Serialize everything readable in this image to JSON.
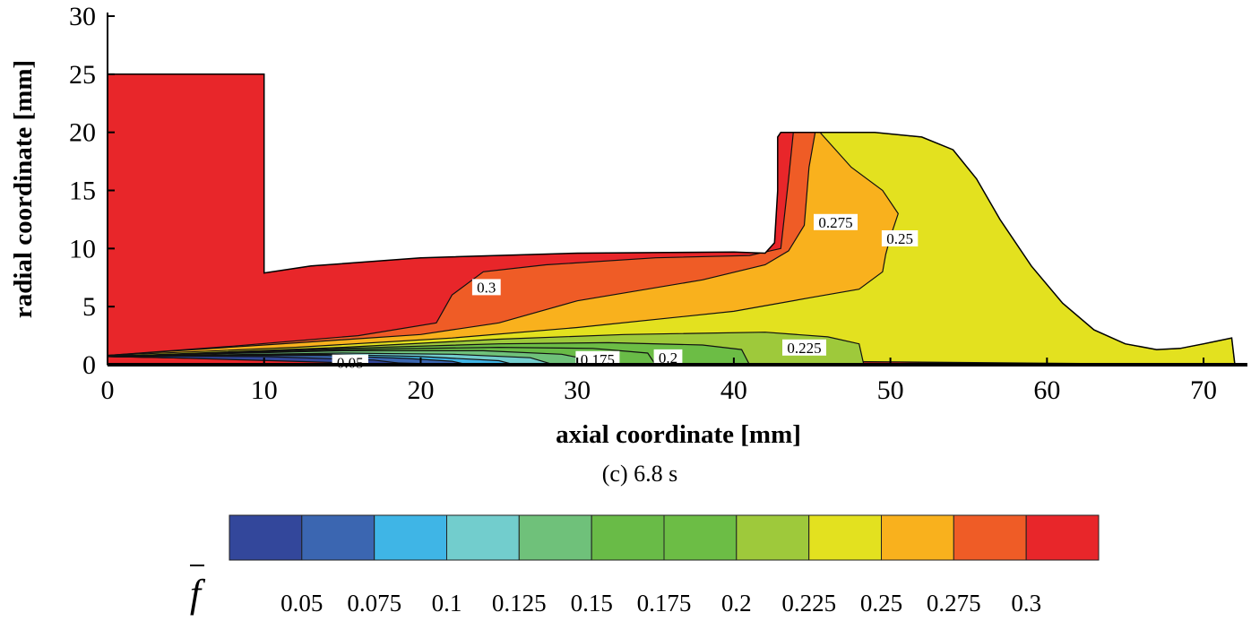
{
  "chart_data": {
    "type": "contour",
    "xlabel": "axial coordinate [mm]",
    "ylabel": "radial coordinate [mm]",
    "caption": "(c) 6.8 s",
    "xlim": [
      0,
      72
    ],
    "ylim": [
      0,
      30
    ],
    "xticks": [
      0,
      10,
      20,
      30,
      40,
      50,
      60,
      70
    ],
    "yticks": [
      0,
      5,
      10,
      15,
      20,
      25,
      30
    ],
    "domain_outline": [
      [
        0,
        0
      ],
      [
        0,
        25
      ],
      [
        10,
        25
      ],
      [
        10,
        7.9
      ],
      [
        13,
        8.5
      ],
      [
        20,
        9.2
      ],
      [
        30,
        9.6
      ],
      [
        40,
        9.7
      ],
      [
        42,
        9.6
      ],
      [
        42.6,
        10.5
      ],
      [
        42.8,
        15
      ],
      [
        42.8,
        19.6
      ],
      [
        43,
        20
      ],
      [
        45,
        20
      ],
      [
        49,
        20
      ],
      [
        52,
        19.6
      ],
      [
        54,
        18.5
      ],
      [
        55.5,
        16
      ],
      [
        57,
        12.5
      ],
      [
        59,
        8.5
      ],
      [
        61,
        5.3
      ],
      [
        63,
        3
      ],
      [
        65,
        1.8
      ],
      [
        67,
        1.3
      ],
      [
        68.5,
        1.4
      ],
      [
        70,
        1.8
      ],
      [
        71.8,
        2.3
      ],
      [
        72,
        0
      ]
    ],
    "regions": [
      {
        "level": 0.3,
        "color": "#e8262a",
        "polygon": "outline"
      },
      {
        "level": 0.275,
        "color": "#ef5c26",
        "polygon": [
          [
            0,
            0.8
          ],
          [
            8,
            1.6
          ],
          [
            16,
            2.5
          ],
          [
            21,
            3.6
          ],
          [
            22,
            6
          ],
          [
            24,
            8
          ],
          [
            28,
            8.6
          ],
          [
            35,
            9.2
          ],
          [
            41,
            9.4
          ],
          [
            43,
            10
          ],
          [
            43.5,
            16
          ],
          [
            43.8,
            20
          ],
          [
            45,
            20
          ],
          [
            49,
            20
          ],
          [
            60,
            20
          ],
          [
            72,
            20
          ],
          [
            72,
            0
          ]
        ]
      },
      {
        "level": 0.25,
        "color": "#f9b11d",
        "polygon": [
          [
            0,
            0.8
          ],
          [
            10,
            1.7
          ],
          [
            20,
            2.6
          ],
          [
            25,
            3.6
          ],
          [
            30,
            5.5
          ],
          [
            38,
            7.3
          ],
          [
            42,
            8.6
          ],
          [
            43.5,
            9.8
          ],
          [
            44.5,
            12
          ],
          [
            44.8,
            17
          ],
          [
            45.2,
            20
          ],
          [
            49,
            20
          ],
          [
            60,
            20
          ],
          [
            72,
            20
          ],
          [
            72,
            0
          ]
        ]
      },
      {
        "level": 0.225,
        "color": "#e3e11f",
        "polygon": [
          [
            0,
            0.8
          ],
          [
            12,
            1.5
          ],
          [
            22,
            2.3
          ],
          [
            30,
            3.2
          ],
          [
            40,
            4.6
          ],
          [
            45,
            5.8
          ],
          [
            48,
            6.5
          ],
          [
            49.5,
            8
          ],
          [
            49.7,
            9.5
          ],
          [
            50,
            11
          ],
          [
            50.5,
            13
          ],
          [
            49.5,
            15
          ],
          [
            47.5,
            17
          ],
          [
            45.5,
            20
          ],
          [
            49,
            20
          ],
          [
            52,
            19.6
          ],
          [
            54,
            18.5
          ],
          [
            55.5,
            16
          ],
          [
            57,
            12.5
          ],
          [
            59,
            8.5
          ],
          [
            61,
            5.3
          ],
          [
            63,
            3
          ],
          [
            65,
            1.8
          ],
          [
            67,
            1.3
          ],
          [
            68.5,
            1.4
          ],
          [
            70,
            1.8
          ],
          [
            71.8,
            2.3
          ],
          [
            72,
            0
          ]
        ]
      },
      {
        "level": 0.2,
        "color": "#9ec93b",
        "polygon": [
          [
            0,
            0.7
          ],
          [
            15,
            1.5
          ],
          [
            25,
            2.2
          ],
          [
            33,
            2.6
          ],
          [
            42,
            2.8
          ],
          [
            46,
            2.4
          ],
          [
            48,
            1.8
          ],
          [
            48.3,
            0
          ]
        ]
      },
      {
        "level": 0.175,
        "color": "#6cbd45",
        "polygon": [
          [
            0,
            0.7
          ],
          [
            15,
            1.4
          ],
          [
            25,
            1.8
          ],
          [
            32,
            1.9
          ],
          [
            38,
            1.7
          ],
          [
            40.5,
            1.3
          ],
          [
            41,
            0
          ]
        ]
      },
      {
        "level": 0.15,
        "color": "#69bb47",
        "polygon": [
          [
            0,
            0.7
          ],
          [
            15,
            1.3
          ],
          [
            25,
            1.5
          ],
          [
            31,
            1.4
          ],
          [
            34.5,
            1.0
          ],
          [
            35,
            0
          ]
        ]
      },
      {
        "level": 0.125,
        "color": "#6fc17a",
        "polygon": [
          [
            0,
            0.7
          ],
          [
            15,
            1.2
          ],
          [
            24,
            1.2
          ],
          [
            29,
            0.9
          ],
          [
            30.5,
            0.5
          ],
          [
            31,
            0
          ]
        ]
      },
      {
        "level": 0.1,
        "color": "#72cdcd",
        "polygon": [
          [
            0,
            0.7
          ],
          [
            15,
            1.0
          ],
          [
            22,
            0.9
          ],
          [
            27,
            0.6
          ],
          [
            28.5,
            0
          ]
        ]
      },
      {
        "level": 0.075,
        "color": "#3fb5e6",
        "polygon": [
          [
            0,
            0.7
          ],
          [
            14,
            0.9
          ],
          [
            20,
            0.7
          ],
          [
            25,
            0.35
          ],
          [
            26,
            0
          ]
        ]
      },
      {
        "level": 0.05,
        "color": "#3b66b1",
        "polygon": [
          [
            0,
            0.8
          ],
          [
            14,
            0.8
          ],
          [
            19,
            0.55
          ],
          [
            22,
            0.3
          ],
          [
            23,
            0
          ]
        ]
      },
      {
        "level": 0.025,
        "color": "#33479b",
        "polygon": [
          [
            0,
            0.75
          ],
          [
            10,
            0.7
          ],
          [
            17,
            0.4
          ],
          [
            19.5,
            0
          ]
        ]
      }
    ],
    "contour_labels": [
      {
        "text": "0.3",
        "x": 24.2,
        "y": 6.6
      },
      {
        "text": "0.275",
        "x": 46.5,
        "y": 12.2
      },
      {
        "text": "0.25",
        "x": 50.6,
        "y": 10.8
      },
      {
        "text": "0.225",
        "x": 44.5,
        "y": 1.4
      },
      {
        "text": "0.2",
        "x": 35.8,
        "y": 0.55
      },
      {
        "text": "0.175",
        "x": 31.3,
        "y": 0.4
      },
      {
        "text": "0.05",
        "x": 15.5,
        "y": 0.1
      }
    ],
    "colorbar": {
      "title": "f",
      "tick_labels": [
        "0.05",
        "0.075",
        "0.1",
        "0.125",
        "0.15",
        "0.175",
        "0.2",
        "0.225",
        "0.25",
        "0.275",
        "0.3"
      ],
      "colors": [
        "#33479b",
        "#3b66b1",
        "#3fb5e6",
        "#72cdcd",
        "#6fc17a",
        "#69bb47",
        "#6cbd45",
        "#9ec93b",
        "#e3e11f",
        "#f9b11d",
        "#ef5c26",
        "#e8262a"
      ]
    }
  }
}
